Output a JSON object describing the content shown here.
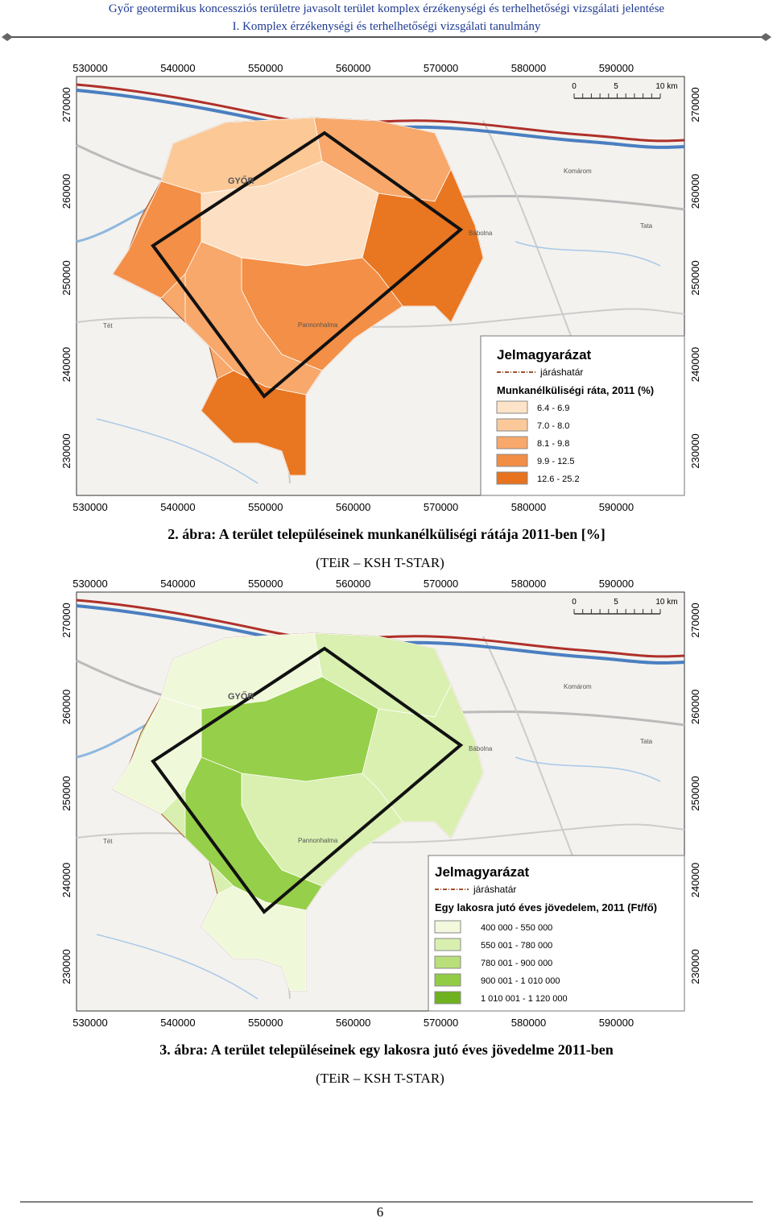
{
  "header": {
    "lines": [
      "Győr geotermikus koncessziós területre javasolt terület komplex érzékenységi és terhelhetőségi vizsgálati jelentése",
      "I. Komplex érzékenységi és terhelhetőségi vizsgálati tanulmány"
    ]
  },
  "figures": [
    {
      "x_labels": [
        530000,
        540000,
        550000,
        560000,
        570000,
        580000,
        590000
      ],
      "y_labels": [
        270000,
        260000,
        250000,
        240000,
        230000
      ],
      "scale": [
        "0",
        "5",
        "10 km"
      ],
      "places": [
        "GYŐR",
        "Komárom",
        "Tata",
        "Bábolna",
        "Pannonhalma",
        "Tét"
      ],
      "legend": {
        "title": "Jelmagyarázat",
        "boundary": "járáshatár",
        "subtitle": "Munkanélküliségi ráta, 2011 (%)",
        "classes": [
          {
            "label": "6.4 - 6.9",
            "color": "#fde3c8"
          },
          {
            "label": "7.0 - 8.0",
            "color": "#fbc999"
          },
          {
            "label": "8.1 - 9.8",
            "color": "#f7a86a"
          },
          {
            "label": "9.9 - 12.5",
            "color": "#f28d45"
          },
          {
            "label": "12.6 - 25.2",
            "color": "#e8731e"
          }
        ]
      },
      "caption": "2. ábra: A terület településeinek munkanélküliségi rátája 2011-ben [%]",
      "source": "(TEiR – KSH T-STAR)"
    },
    {
      "x_labels": [
        530000,
        540000,
        550000,
        560000,
        570000,
        580000,
        590000
      ],
      "y_labels": [
        270000,
        260000,
        250000,
        240000,
        230000
      ],
      "scale": [
        "0",
        "5",
        "10 km"
      ],
      "places": [
        "GYŐR",
        "Komárom",
        "Tata",
        "Bábolna",
        "Pannonhalma",
        "Tét"
      ],
      "legend": {
        "title": "Jelmagyarázat",
        "boundary": "járáshatár",
        "subtitle": "Egy lakosra jutó éves jövedelem, 2011 (Ft/fő)",
        "classes": [
          {
            "label": "400 000 - 550 000",
            "color": "#f1f8dc"
          },
          {
            "label": "550 001 - 780 000",
            "color": "#d9efb0"
          },
          {
            "label": "780 001 - 900 000",
            "color": "#b9df7a"
          },
          {
            "label": "900 001 - 1 010 000",
            "color": "#92cc45"
          },
          {
            "label": "1 010 001 - 1 120 000",
            "color": "#6fb21f"
          }
        ]
      },
      "caption": "3. ábra: A terület településeinek egy lakosra jutó éves jövedelme 2011-ben",
      "source": "(TEiR – KSH T-STAR)"
    }
  ],
  "footer": {
    "page_number": "6"
  }
}
